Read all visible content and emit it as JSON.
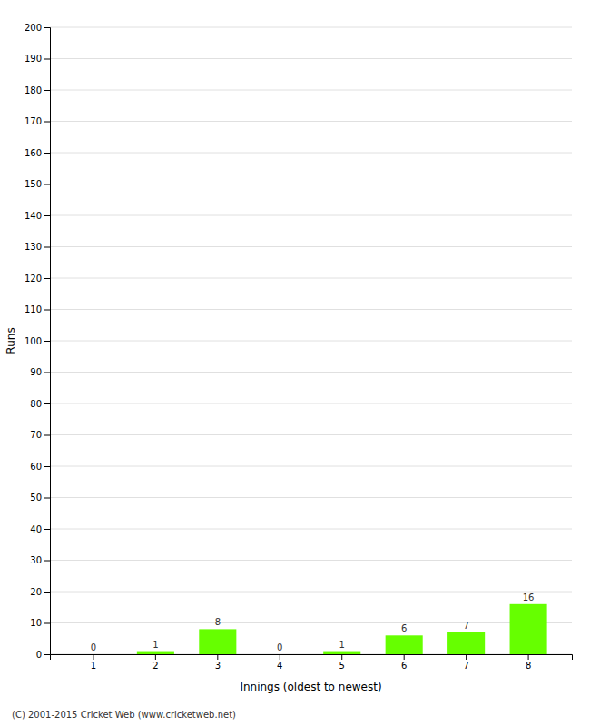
{
  "chart_data": {
    "type": "bar",
    "categories": [
      "1",
      "2",
      "3",
      "4",
      "5",
      "6",
      "7",
      "8"
    ],
    "values": [
      0,
      1,
      8,
      0,
      1,
      6,
      7,
      16
    ],
    "color": "#66ff00",
    "xlabel": "Innings (oldest to newest)",
    "ylabel": "Runs",
    "ylim": [
      0,
      200
    ],
    "yticks": [
      0,
      10,
      20,
      30,
      40,
      50,
      60,
      70,
      80,
      90,
      100,
      110,
      120,
      130,
      140,
      150,
      160,
      170,
      180,
      190,
      200
    ],
    "grid": true,
    "data_labels": true,
    "annotations": [
      "(C) 2001-2015 Cricket Web (www.cricketweb.net)"
    ]
  }
}
